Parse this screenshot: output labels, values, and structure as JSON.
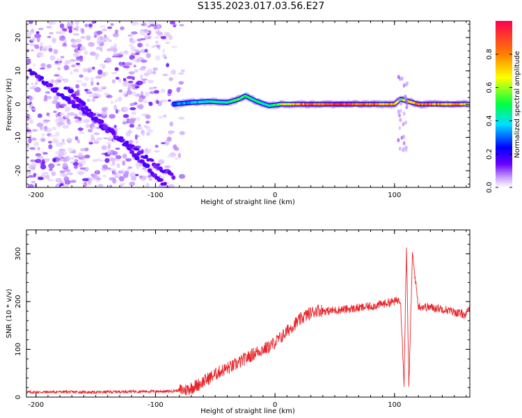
{
  "title": "S135.2023.017.03.56.E27",
  "chart_data": [
    {
      "type": "heatmap",
      "xlabel": "Height of straight line (km)",
      "ylabel": "Frequency (Hz)",
      "xlim": [
        -208,
        163
      ],
      "ylim": [
        -25,
        25
      ],
      "xticks": [
        -200,
        -100,
        0,
        100
      ],
      "yticks": [
        -20,
        -10,
        0,
        10,
        20
      ],
      "colorbar": {
        "label": "Normalized spectral amplitude",
        "range": [
          0.0,
          1.0
        ],
        "ticks": [
          "0.0",
          "0.2",
          "0.4",
          "0.6",
          "0.8"
        ],
        "colors": [
          "#ffffff",
          "#c9a0ff",
          "#6a00ff",
          "#0000ff",
          "#00e0ff",
          "#00ff40",
          "#ffff00",
          "#ff8000",
          "#ff0050"
        ]
      },
      "ridge": {
        "description_values_x": [
          -85,
          -70,
          -55,
          -40,
          -30,
          -25,
          -15,
          -5,
          5,
          20,
          40,
          60,
          80,
          100,
          105,
          120,
          140,
          163
        ],
        "freq_hz": [
          0,
          0.5,
          0.8,
          0.5,
          1.5,
          2.5,
          0.8,
          -0.5,
          0,
          0,
          0,
          0,
          0,
          0,
          1.5,
          0,
          0,
          0
        ],
        "amplitude": [
          0.3,
          0.35,
          0.4,
          0.45,
          0.5,
          0.55,
          0.45,
          0.4,
          0.6,
          0.8,
          0.9,
          0.9,
          0.85,
          0.8,
          0.6,
          0.85,
          0.8,
          0.7
        ]
      },
      "noise_region": {
        "x_range": [
          -208,
          -75
        ],
        "freq_range": [
          -25,
          25
        ]
      },
      "chirps": [
        {
          "x": [
            -175,
            -90
          ],
          "freq": [
            5,
            -25
          ]
        },
        {
          "x": [
            -150,
            -85
          ],
          "freq": [
            -5,
            -22
          ]
        },
        {
          "x": [
            -205,
            -150
          ],
          "freq": [
            10,
            -5
          ]
        }
      ]
    },
    {
      "type": "line",
      "xlabel": "Height of straight line (km)",
      "ylabel": "SNR (10 * v/v)",
      "xlim": [
        -208,
        163
      ],
      "ylim": [
        0,
        350
      ],
      "xticks": [
        -200,
        -100,
        0,
        100
      ],
      "yticks": [
        0,
        100,
        200,
        300
      ],
      "series": [
        {
          "color": "#e8262b",
          "x": [
            -208,
            -180,
            -150,
            -120,
            -90,
            -75,
            -65,
            -55,
            -45,
            -35,
            -25,
            -15,
            -5,
            5,
            15,
            25,
            35,
            45,
            55,
            65,
            75,
            85,
            95,
            100,
            105,
            108,
            110,
            112,
            115,
            120,
            130,
            140,
            150,
            160,
            163
          ],
          "y": [
            10,
            11,
            10,
            12,
            12,
            15,
            25,
            40,
            55,
            65,
            80,
            95,
            105,
            125,
            150,
            170,
            182,
            180,
            183,
            185,
            188,
            192,
            198,
            200,
            205,
            30,
            320,
            20,
            300,
            190,
            188,
            185,
            178,
            172,
            190
          ]
        }
      ]
    }
  ]
}
